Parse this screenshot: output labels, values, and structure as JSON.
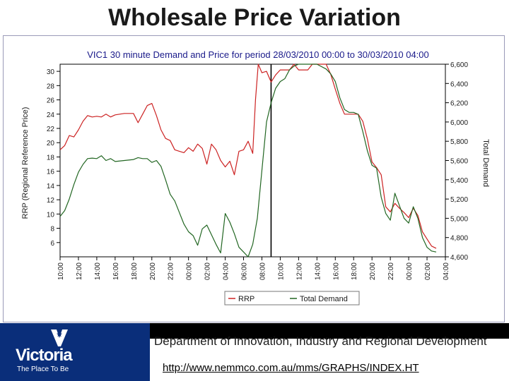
{
  "slide": {
    "title": "Wholesale Price Variation"
  },
  "chart_data": {
    "type": "line",
    "title": "VIC1 30 minute Demand and Price for period 28/03/2010 00:00 to 30/03/2010 04:00",
    "ylabel": "RRP (Regional Reference Price)",
    "y2label": "Total Demand",
    "ylim": [
      4,
      31
    ],
    "y2lim": [
      4600,
      6600
    ],
    "yticks": [
      6,
      8,
      10,
      12,
      14,
      16,
      18,
      20,
      22,
      24,
      26,
      28,
      30
    ],
    "y2ticks": [
      "4,600",
      "4,800",
      "5,000",
      "5,200",
      "5,400",
      "5,600",
      "5,800",
      "6,000",
      "6,200",
      "6,400",
      "6,600"
    ],
    "y2tick_values": [
      4600,
      4800,
      5000,
      5200,
      5400,
      5600,
      5800,
      6000,
      6200,
      6400,
      6600
    ],
    "xlim": [
      0,
      42
    ],
    "x_tick_labels": [
      "10:00",
      "12:00",
      "14:00",
      "16:00",
      "18:00",
      "20:00",
      "22:00",
      "00:00",
      "02:00",
      "04:00",
      "06:00",
      "08:00",
      "10:00",
      "12:00",
      "14:00",
      "16:00",
      "18:00",
      "20:00",
      "22:00",
      "00:00",
      "02:00",
      "04:00"
    ],
    "divider_x": 23,
    "legend": [
      "RRP",
      "Total Demand"
    ],
    "legend_position": "bottom-center",
    "series": [
      {
        "name": "RRP",
        "color": "#cc2222",
        "axis": "left",
        "points": [
          [
            0,
            19
          ],
          [
            0.5,
            19.6
          ],
          [
            1,
            21
          ],
          [
            1.5,
            20.8
          ],
          [
            2,
            21.8
          ],
          [
            2.5,
            23
          ],
          [
            3,
            23.8
          ],
          [
            3.5,
            23.6
          ],
          [
            4,
            23.7
          ],
          [
            4.5,
            23.6
          ],
          [
            5,
            24
          ],
          [
            5.5,
            23.6
          ],
          [
            6,
            23.9
          ],
          [
            7,
            24.1
          ],
          [
            8,
            24.1
          ],
          [
            8.5,
            22.8
          ],
          [
            9,
            24
          ],
          [
            9.5,
            25.2
          ],
          [
            10,
            25.5
          ],
          [
            10.5,
            23.8
          ],
          [
            11,
            21.8
          ],
          [
            11.5,
            20.6
          ],
          [
            12,
            20.3
          ],
          [
            12.5,
            19
          ],
          [
            13,
            18.8
          ],
          [
            13.5,
            18.6
          ],
          [
            14,
            19.3
          ],
          [
            14.5,
            18.8
          ],
          [
            15,
            19.8
          ],
          [
            15.5,
            19.2
          ],
          [
            16,
            17
          ],
          [
            16.5,
            19.8
          ],
          [
            17,
            19
          ],
          [
            17.5,
            17.5
          ],
          [
            18,
            16.6
          ],
          [
            18.5,
            17.4
          ],
          [
            19,
            15.5
          ],
          [
            19.5,
            18.8
          ],
          [
            20,
            19
          ],
          [
            20.5,
            20.2
          ],
          [
            21,
            18.5
          ],
          [
            21.3,
            26
          ],
          [
            21.6,
            31
          ],
          [
            22,
            29.8
          ],
          [
            22.5,
            30
          ],
          [
            23,
            28.5
          ],
          [
            23.5,
            29.5
          ],
          [
            24,
            30.2
          ],
          [
            24.5,
            30.2
          ],
          [
            25,
            30.2
          ],
          [
            25.5,
            31.5
          ],
          [
            26,
            30.2
          ],
          [
            27,
            30.2
          ],
          [
            27.5,
            31.5
          ],
          [
            28,
            31.5
          ],
          [
            29,
            31.5
          ],
          [
            29.5,
            29.6
          ],
          [
            30,
            27.5
          ],
          [
            30.5,
            25.5
          ],
          [
            31,
            24
          ],
          [
            31.5,
            24
          ],
          [
            32,
            24
          ],
          [
            32.5,
            24
          ],
          [
            33,
            23
          ],
          [
            33.5,
            20.5
          ],
          [
            34,
            17.3
          ],
          [
            34.5,
            16.5
          ],
          [
            35,
            15.5
          ],
          [
            35.5,
            11
          ],
          [
            36,
            10.3
          ],
          [
            36.5,
            11.5
          ],
          [
            37,
            10.8
          ],
          [
            37.5,
            10.2
          ],
          [
            38,
            9.5
          ],
          [
            38.5,
            10.8
          ],
          [
            39,
            9.8
          ],
          [
            39.5,
            7.5
          ],
          [
            40,
            6.5
          ],
          [
            40.5,
            5.5
          ],
          [
            41,
            5.2
          ]
        ]
      },
      {
        "name": "Total Demand",
        "color": "#226622",
        "axis": "right",
        "points": [
          [
            0,
            5020
          ],
          [
            0.5,
            5080
          ],
          [
            1,
            5200
          ],
          [
            1.5,
            5350
          ],
          [
            2,
            5480
          ],
          [
            2.5,
            5560
          ],
          [
            3,
            5620
          ],
          [
            3.5,
            5625
          ],
          [
            4,
            5620
          ],
          [
            4.5,
            5650
          ],
          [
            5,
            5600
          ],
          [
            5.5,
            5620
          ],
          [
            6,
            5590
          ],
          [
            7,
            5600
          ],
          [
            8,
            5610
          ],
          [
            8.5,
            5630
          ],
          [
            9,
            5620
          ],
          [
            9.5,
            5620
          ],
          [
            10,
            5580
          ],
          [
            10.5,
            5600
          ],
          [
            11,
            5540
          ],
          [
            11.5,
            5400
          ],
          [
            12,
            5250
          ],
          [
            12.5,
            5180
          ],
          [
            13,
            5060
          ],
          [
            13.5,
            4940
          ],
          [
            14,
            4860
          ],
          [
            14.5,
            4820
          ],
          [
            15,
            4720
          ],
          [
            15.5,
            4890
          ],
          [
            16,
            4930
          ],
          [
            16.5,
            4830
          ],
          [
            17,
            4730
          ],
          [
            17.5,
            4640
          ],
          [
            18,
            5050
          ],
          [
            18.5,
            4960
          ],
          [
            19,
            4840
          ],
          [
            19.5,
            4700
          ],
          [
            20,
            4650
          ],
          [
            20.5,
            4600
          ],
          [
            21,
            4730
          ],
          [
            21.5,
            5000
          ],
          [
            22,
            5500
          ],
          [
            22.5,
            6000
          ],
          [
            23,
            6200
          ],
          [
            23.5,
            6350
          ],
          [
            24,
            6420
          ],
          [
            24.5,
            6450
          ],
          [
            25,
            6540
          ],
          [
            25.5,
            6580
          ],
          [
            26,
            6620
          ],
          [
            27,
            6630
          ],
          [
            28,
            6620
          ],
          [
            29,
            6550
          ],
          [
            29.5,
            6500
          ],
          [
            30,
            6420
          ],
          [
            30.5,
            6250
          ],
          [
            31,
            6130
          ],
          [
            31.5,
            6100
          ],
          [
            32,
            6100
          ],
          [
            32.5,
            6080
          ],
          [
            33,
            5900
          ],
          [
            33.5,
            5700
          ],
          [
            34,
            5550
          ],
          [
            34.5,
            5520
          ],
          [
            35,
            5220
          ],
          [
            35.5,
            5050
          ],
          [
            36,
            4980
          ],
          [
            36.5,
            5260
          ],
          [
            37,
            5130
          ],
          [
            37.5,
            5000
          ],
          [
            38,
            4950
          ],
          [
            38.5,
            5120
          ],
          [
            39,
            5000
          ],
          [
            39.5,
            4800
          ],
          [
            40,
            4700
          ],
          [
            40.5,
            4660
          ],
          [
            41,
            4650
          ]
        ]
      }
    ]
  },
  "footer": {
    "department": "Department of Innovation, Industry and Regional Development",
    "url": "http://www.nemmco.com.au/mms/GRAPHS/INDEX.HT",
    "logo_word": "Victoria",
    "logo_tagline": "The Place To Be"
  }
}
